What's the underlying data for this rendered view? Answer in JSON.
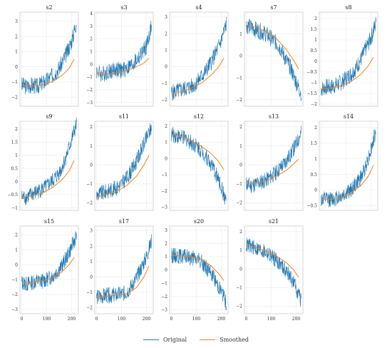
{
  "chart_data": {
    "type": "line",
    "legend": {
      "placement": "bottom-center",
      "items": [
        "Original",
        "Smoothed"
      ]
    },
    "series_colors": {
      "Original": "#1f77b4",
      "Smoothed": "#ff7f0e"
    },
    "grid": true,
    "x_range": [
      0,
      220
    ],
    "panels": [
      {
        "title": "s2",
        "xticks": [],
        "yticks": [
          -2,
          -1,
          0,
          1,
          2,
          3
        ],
        "ylim": [
          -2.6,
          3.6
        ],
        "original": {
          "x": [
            0,
            20,
            40,
            60,
            80,
            100,
            120,
            140,
            160,
            180,
            200,
            220
          ],
          "y": [
            -1.2,
            -1.3,
            -1.2,
            -1.3,
            -1.1,
            -0.9,
            -0.6,
            -0.3,
            0.2,
            0.9,
            1.7,
            3.0
          ]
        },
        "smoothed": {
          "x": [
            0,
            40,
            80,
            120,
            160,
            190,
            210
          ],
          "y": [
            -1.2,
            -1.25,
            -1.2,
            -1.0,
            -0.6,
            -0.1,
            0.5
          ]
        }
      },
      {
        "title": "s3",
        "xticks": [],
        "yticks": [
          -3,
          -2,
          -1,
          0,
          1,
          2,
          3,
          4
        ],
        "ylim": [
          -3.3,
          4.1
        ],
        "original": {
          "x": [
            0,
            20,
            40,
            60,
            80,
            100,
            120,
            140,
            160,
            180,
            200,
            220
          ],
          "y": [
            -0.5,
            -0.8,
            -0.6,
            -0.5,
            -0.4,
            -0.5,
            -0.3,
            -0.1,
            0.3,
            0.8,
            1.4,
            3.0
          ]
        },
        "smoothed": {
          "x": [
            0,
            40,
            80,
            120,
            160,
            190,
            210
          ],
          "y": [
            -0.7,
            -0.8,
            -0.7,
            -0.5,
            -0.2,
            0.1,
            0.5
          ]
        }
      },
      {
        "title": "s4",
        "xticks": [],
        "yticks": [
          -2,
          -1,
          0,
          1,
          2,
          3
        ],
        "ylim": [
          -2.4,
          3.3
        ],
        "original": {
          "x": [
            0,
            20,
            40,
            60,
            80,
            100,
            120,
            140,
            160,
            180,
            200,
            220
          ],
          "y": [
            -1.6,
            -1.5,
            -1.4,
            -1.3,
            -1.2,
            -1.0,
            -0.6,
            -0.2,
            0.3,
            0.9,
            1.6,
            2.6
          ]
        },
        "smoothed": {
          "x": [
            0,
            40,
            80,
            120,
            160,
            190,
            210
          ],
          "y": [
            -1.7,
            -1.5,
            -1.3,
            -1.0,
            -0.5,
            0.0,
            0.5
          ]
        }
      },
      {
        "title": "s7",
        "xticks": [],
        "yticks": [
          -2,
          -1,
          0,
          1
        ],
        "ylim": [
          -2.3,
          2.0
        ],
        "original": {
          "x": [
            0,
            20,
            40,
            60,
            80,
            100,
            120,
            140,
            160,
            180,
            200,
            220
          ],
          "y": [
            1.4,
            1.3,
            1.2,
            1.1,
            1.0,
            0.8,
            0.6,
            0.3,
            -0.2,
            -0.6,
            -1.2,
            -1.7
          ]
        },
        "smoothed": {
          "x": [
            0,
            40,
            80,
            120,
            160,
            190,
            210
          ],
          "y": [
            1.4,
            1.3,
            1.1,
            0.8,
            0.3,
            -0.2,
            -0.6
          ]
        }
      },
      {
        "title": "s8",
        "xticks": [],
        "yticks": [
          -2.0,
          -1.5,
          -1.0,
          -0.5,
          0.0,
          0.5,
          1.0,
          1.5,
          2.0
        ],
        "ylim": [
          -2.1,
          2.3
        ],
        "original": {
          "x": [
            0,
            20,
            40,
            60,
            80,
            100,
            120,
            140,
            160,
            180,
            200,
            220
          ],
          "y": [
            -1.3,
            -1.2,
            -1.2,
            -1.1,
            -1.0,
            -0.8,
            -0.6,
            -0.3,
            0.1,
            0.6,
            1.1,
            1.8
          ]
        },
        "smoothed": {
          "x": [
            0,
            40,
            80,
            120,
            160,
            190,
            210
          ],
          "y": [
            -1.3,
            -1.25,
            -1.15,
            -0.95,
            -0.6,
            -0.2,
            0.2
          ]
        }
      },
      {
        "title": "s9",
        "xticks": [],
        "yticks": [
          -1.0,
          -0.5,
          0.0,
          0.5,
          1.0,
          1.5,
          2.0
        ],
        "ylim": [
          -1.1,
          2.3
        ],
        "original": {
          "x": [
            0,
            20,
            40,
            60,
            80,
            100,
            120,
            140,
            160,
            180,
            200,
            220
          ],
          "y": [
            -0.6,
            -0.6,
            -0.5,
            -0.4,
            -0.3,
            -0.2,
            0.0,
            0.2,
            0.5,
            1.0,
            1.6,
            2.2
          ]
        },
        "smoothed": {
          "x": [
            0,
            40,
            80,
            120,
            160,
            190,
            210
          ],
          "y": [
            -0.6,
            -0.55,
            -0.45,
            -0.25,
            0.05,
            0.4,
            0.8
          ]
        }
      },
      {
        "title": "s11",
        "xticks": [],
        "yticks": [
          -2,
          -1,
          0,
          1,
          2
        ],
        "ylim": [
          -2.4,
          2.3
        ],
        "original": {
          "x": [
            0,
            20,
            40,
            60,
            80,
            100,
            120,
            140,
            160,
            180,
            200,
            220
          ],
          "y": [
            -1.6,
            -1.5,
            -1.4,
            -1.3,
            -1.2,
            -1.0,
            -0.7,
            -0.3,
            0.2,
            0.8,
            1.4,
            2.0
          ]
        },
        "smoothed": {
          "x": [
            0,
            40,
            80,
            120,
            160,
            190,
            210
          ],
          "y": [
            -1.7,
            -1.55,
            -1.4,
            -1.1,
            -0.6,
            0.0,
            0.5
          ]
        }
      },
      {
        "title": "s12",
        "xticks": [],
        "yticks": [
          -3,
          -2,
          -1,
          0,
          1,
          2
        ],
        "ylim": [
          -3.2,
          2.3
        ],
        "original": {
          "x": [
            0,
            20,
            40,
            60,
            80,
            100,
            120,
            140,
            160,
            180,
            200,
            220
          ],
          "y": [
            1.5,
            1.4,
            1.3,
            1.2,
            1.0,
            0.8,
            0.5,
            0.1,
            -0.4,
            -1.0,
            -1.8,
            -2.7
          ]
        },
        "smoothed": {
          "x": [
            0,
            40,
            80,
            120,
            160,
            190,
            210
          ],
          "y": [
            1.5,
            1.35,
            1.1,
            0.75,
            0.3,
            -0.2,
            -0.7
          ]
        }
      },
      {
        "title": "s13",
        "xticks": [],
        "yticks": [
          -2,
          -1,
          0,
          1,
          2
        ],
        "ylim": [
          -2.4,
          2.3
        ],
        "original": {
          "x": [
            0,
            20,
            40,
            60,
            80,
            100,
            120,
            140,
            160,
            180,
            200,
            220
          ],
          "y": [
            -1.0,
            -1.1,
            -1.0,
            -0.9,
            -0.8,
            -0.6,
            -0.4,
            -0.1,
            0.2,
            0.6,
            1.1,
            1.7
          ]
        },
        "smoothed": {
          "x": [
            0,
            40,
            80,
            120,
            160,
            190,
            210
          ],
          "y": [
            -1.0,
            -0.95,
            -0.85,
            -0.6,
            -0.3,
            0.05,
            0.3
          ]
        }
      },
      {
        "title": "s14",
        "xticks": [],
        "yticks": [
          -0.5,
          0.0,
          0.5,
          1.0,
          1.5,
          2.0
        ],
        "ylim": [
          -0.65,
          2.2
        ],
        "original": {
          "x": [
            0,
            20,
            40,
            60,
            80,
            100,
            120,
            140,
            160,
            180,
            200,
            220
          ],
          "y": [
            -0.3,
            -0.3,
            -0.3,
            -0.25,
            -0.2,
            -0.1,
            0.0,
            0.2,
            0.4,
            0.8,
            1.3,
            1.9
          ]
        },
        "smoothed": {
          "x": [
            0,
            40,
            80,
            120,
            160,
            190,
            210
          ],
          "y": [
            -0.3,
            -0.3,
            -0.25,
            -0.1,
            0.15,
            0.45,
            0.8
          ]
        }
      },
      {
        "title": "s15",
        "xticks": [
          0,
          100,
          200
        ],
        "yticks": [
          -3,
          -2,
          -1,
          0,
          1,
          2
        ],
        "ylim": [
          -3.3,
          2.6
        ],
        "original": {
          "x": [
            0,
            20,
            40,
            60,
            80,
            100,
            120,
            140,
            160,
            180,
            200,
            220
          ],
          "y": [
            -1.2,
            -1.3,
            -1.2,
            -1.1,
            -1.1,
            -1.0,
            -0.8,
            -0.5,
            -0.1,
            0.5,
            1.2,
            2.0
          ]
        },
        "smoothed": {
          "x": [
            0,
            40,
            80,
            120,
            160,
            190,
            210
          ],
          "y": [
            -1.2,
            -1.2,
            -1.1,
            -0.9,
            -0.5,
            0.0,
            0.5
          ]
        }
      },
      {
        "title": "s17",
        "xticks": [
          0,
          100,
          200
        ],
        "yticks": [
          -2,
          -1,
          0,
          1,
          2,
          3
        ],
        "ylim": [
          -2.4,
          3.3
        ],
        "original": {
          "x": [
            0,
            20,
            40,
            60,
            80,
            100,
            120,
            140,
            160,
            180,
            200,
            220
          ],
          "y": [
            -1.3,
            -1.3,
            -1.2,
            -1.2,
            -1.2,
            -1.1,
            -1.0,
            -0.6,
            -0.1,
            0.6,
            1.3,
            2.3
          ]
        },
        "smoothed": {
          "x": [
            0,
            40,
            80,
            120,
            160,
            190,
            210
          ],
          "y": [
            -1.3,
            -1.25,
            -1.2,
            -1.1,
            -0.7,
            0.0,
            0.7
          ]
        }
      },
      {
        "title": "s20",
        "xticks": [
          0,
          100,
          200
        ],
        "yticks": [
          -3,
          -2,
          -1,
          0,
          1,
          2,
          3
        ],
        "ylim": [
          -3.3,
          3.3
        ],
        "original": {
          "x": [
            0,
            20,
            40,
            60,
            80,
            100,
            120,
            140,
            160,
            180,
            200,
            220
          ],
          "y": [
            1.1,
            1.1,
            1.0,
            1.0,
            0.9,
            0.8,
            0.6,
            0.2,
            -0.3,
            -0.9,
            -1.6,
            -2.5
          ]
        },
        "smoothed": {
          "x": [
            0,
            40,
            80,
            120,
            160,
            190,
            210
          ],
          "y": [
            1.1,
            1.05,
            1.0,
            0.8,
            0.3,
            -0.3,
            -0.8
          ]
        }
      },
      {
        "title": "s21",
        "xticks": [
          0,
          100,
          200
        ],
        "yticks": [
          -2,
          -1,
          0,
          1,
          2
        ],
        "ylim": [
          -2.4,
          2.3
        ],
        "original": {
          "x": [
            0,
            20,
            40,
            60,
            80,
            100,
            120,
            140,
            160,
            180,
            200,
            220
          ],
          "y": [
            1.3,
            1.2,
            1.1,
            1.0,
            0.9,
            0.7,
            0.5,
            0.2,
            -0.1,
            -0.5,
            -1.0,
            -1.7
          ]
        },
        "smoothed": {
          "x": [
            0,
            40,
            80,
            120,
            160,
            190,
            210
          ],
          "y": [
            1.3,
            1.15,
            0.95,
            0.7,
            0.35,
            -0.05,
            -0.45
          ]
        }
      }
    ]
  }
}
